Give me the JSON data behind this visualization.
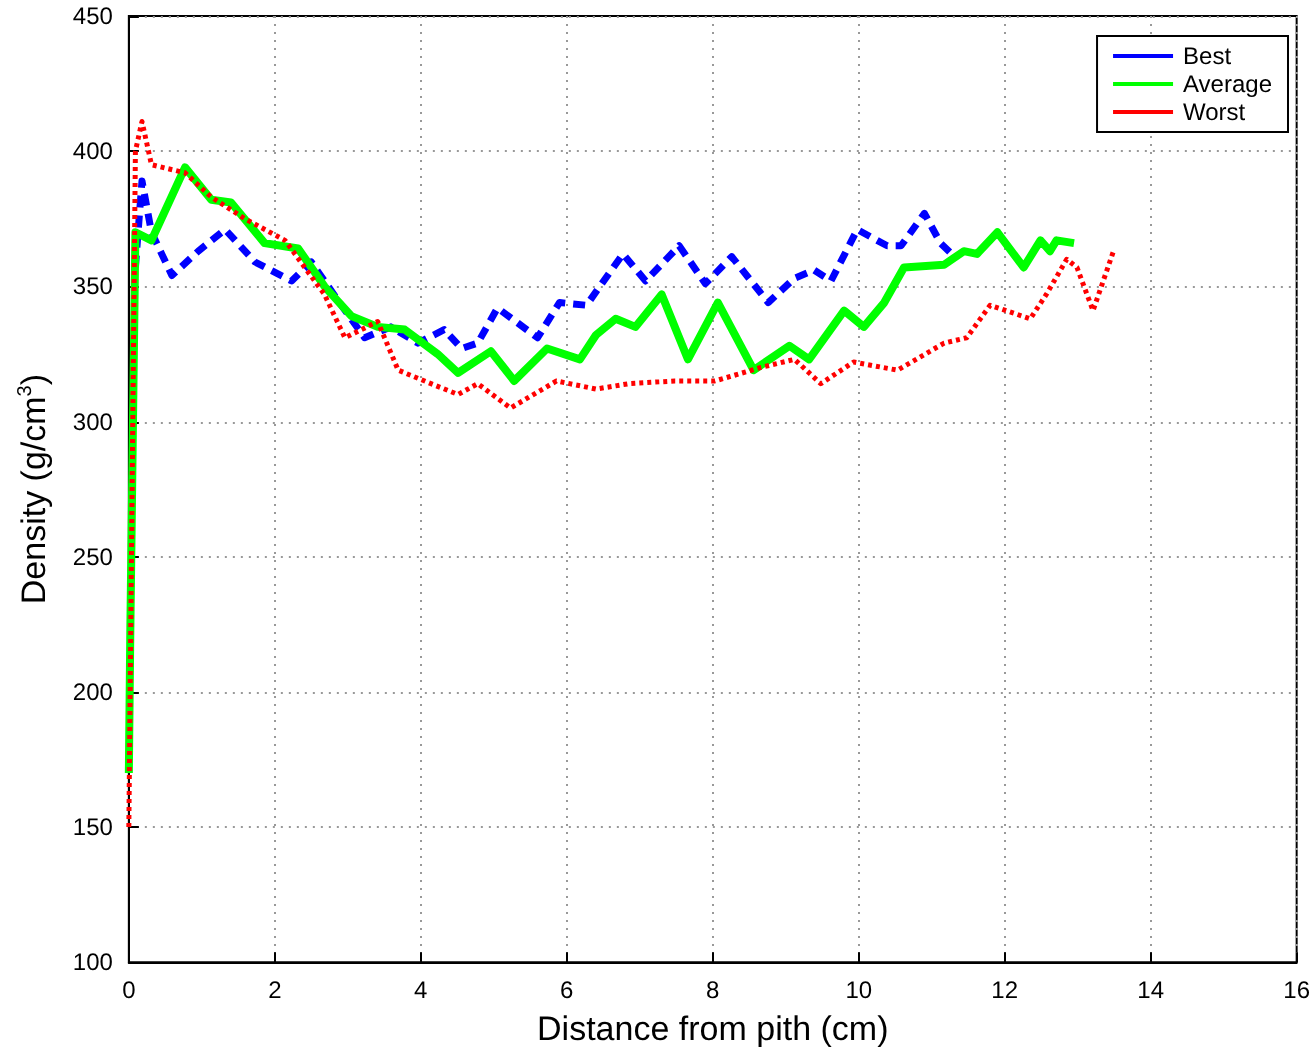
{
  "chart_data": {
    "type": "line",
    "xlabel": "Distance from pith (cm)",
    "ylabel": "Density (g/cm$^{3}$)",
    "xlim": [
      0,
      16
    ],
    "xticks": [
      0,
      2,
      4,
      6,
      8,
      10,
      12,
      14,
      16
    ],
    "ylim": [
      100,
      450
    ],
    "yticks": [
      100,
      150,
      200,
      250,
      300,
      350,
      400,
      450
    ],
    "grid": true,
    "legend": "top right",
    "marker": "none",
    "series": [
      {
        "name": "Best",
        "color": "#0000ff",
        "line_style": "dashed",
        "x": [
          0.09,
          0.18,
          0.31,
          0.59,
          0.95,
          1.32,
          1.73,
          2.23,
          2.5,
          2.86,
          3.23,
          3.59,
          3.96,
          4.32,
          4.56,
          4.78,
          5.05,
          5.6,
          5.9,
          6.27,
          6.77,
          7.08,
          7.54,
          7.9,
          8.26,
          8.76,
          9.12,
          9.39,
          9.62,
          9.98,
          10.39,
          10.58,
          10.9,
          11.12,
          11.31
        ],
        "values": [
          357,
          389,
          370,
          354,
          363,
          371,
          359,
          352,
          359,
          345,
          331,
          335,
          329,
          334,
          327,
          329,
          342,
          331,
          344,
          343,
          362,
          352,
          365,
          351,
          361,
          344,
          353,
          356,
          352,
          371,
          365,
          365,
          377,
          366,
          361
        ]
      },
      {
        "name": "Average",
        "color": "#00ff00",
        "line_style": "solid",
        "x": [
          0,
          0.02,
          0.09,
          0.31,
          0.77,
          1.13,
          1.4,
          1.86,
          2.32,
          2.68,
          3.05,
          3.41,
          3.78,
          4.23,
          4.51,
          4.96,
          5.28,
          5.73,
          6.18,
          6.4,
          6.67,
          6.94,
          7.3,
          7.66,
          8.07,
          8.56,
          9.05,
          9.32,
          9.8,
          10.07,
          10.35,
          10.62,
          11.17,
          11.44,
          11.62,
          11.9,
          12.26,
          12.49,
          12.62,
          12.71,
          12.95
        ],
        "values": [
          170,
          222,
          370,
          367,
          394,
          382,
          381,
          366,
          364,
          350,
          339,
          335,
          334,
          325,
          318,
          326,
          315,
          327,
          323,
          332,
          338,
          335,
          347,
          323,
          344,
          319,
          328,
          323,
          341,
          335,
          344,
          357,
          358,
          363,
          362,
          370,
          357,
          367,
          363,
          367,
          366
        ]
      },
      {
        "name": "Worst",
        "color": "#ff0000",
        "line_style": "dotted",
        "x": [
          0,
          0.09,
          0.18,
          0.31,
          0.77,
          1.13,
          1.59,
          2.14,
          2.68,
          2.96,
          3.41,
          3.69,
          4.14,
          4.51,
          4.78,
          5.23,
          5.86,
          6.4,
          6.85,
          7.48,
          8.03,
          8.66,
          9.12,
          9.48,
          9.93,
          10.53,
          11.17,
          11.48,
          11.8,
          12.35,
          12.57,
          12.85,
          12.99,
          13.21,
          13.49
        ],
        "values": [
          150,
          400,
          411,
          395,
          392,
          383,
          375,
          367,
          347,
          331,
          337,
          319,
          314,
          310,
          314,
          305,
          315,
          312,
          314,
          315,
          315,
          320,
          323,
          314,
          322,
          319,
          329,
          331,
          343,
          338,
          347,
          360,
          357,
          341,
          363
        ]
      }
    ]
  }
}
